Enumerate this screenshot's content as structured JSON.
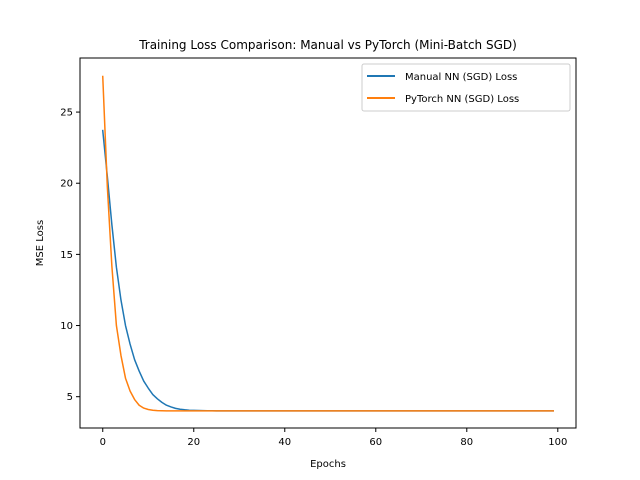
{
  "chart_data": {
    "type": "line",
    "title": "Training Loss Comparison: Manual vs PyTorch (Mini-Batch SGD)",
    "xlabel": "Epochs",
    "ylabel": "MSE Loss",
    "xlim": [
      -5,
      104
    ],
    "ylim": [
      2.8,
      28.8
    ],
    "xticks": [
      0,
      20,
      40,
      60,
      80,
      100
    ],
    "yticks": [
      5,
      10,
      15,
      20,
      25
    ],
    "grid": false,
    "legend_position": "top-right",
    "series": [
      {
        "name": "Manual NN (SGD) Loss",
        "color": "#1f77b4",
        "x": [
          0,
          1,
          2,
          3,
          4,
          5,
          6,
          7,
          8,
          9,
          10,
          11,
          12,
          13,
          14,
          15,
          16,
          17,
          18,
          19,
          20,
          21,
          22,
          23,
          24,
          25,
          26,
          27,
          28,
          29,
          30,
          35,
          40,
          45,
          50,
          55,
          60,
          65,
          70,
          75,
          80,
          85,
          90,
          95,
          99
        ],
        "y": [
          23.7,
          20.5,
          17.1,
          14.1,
          11.8,
          10.0,
          8.7,
          7.6,
          6.8,
          6.1,
          5.6,
          5.15,
          4.85,
          4.6,
          4.4,
          4.28,
          4.18,
          4.12,
          4.08,
          4.05,
          4.04,
          4.03,
          4.02,
          4.01,
          4.01,
          4.0,
          4.0,
          4.0,
          4.0,
          4.0,
          4.0,
          4.0,
          4.0,
          4.0,
          4.0,
          4.0,
          4.0,
          4.0,
          4.0,
          4.0,
          4.0,
          4.0,
          4.0,
          4.0,
          4.0
        ]
      },
      {
        "name": "PyTorch NN (SGD) Loss",
        "color": "#ff7f0e",
        "x": [
          0,
          1,
          2,
          3,
          4,
          5,
          6,
          7,
          8,
          9,
          10,
          11,
          12,
          13,
          14,
          15,
          16,
          17,
          18,
          19,
          20,
          25,
          30,
          35,
          40,
          45,
          50,
          55,
          60,
          65,
          70,
          75,
          80,
          85,
          90,
          95,
          99
        ],
        "y": [
          27.5,
          19.8,
          14.2,
          10.0,
          7.9,
          6.3,
          5.4,
          4.8,
          4.4,
          4.2,
          4.1,
          4.05,
          4.02,
          4.01,
          4.0,
          4.0,
          4.0,
          4.0,
          4.0,
          4.0,
          4.0,
          4.0,
          4.0,
          4.0,
          4.0,
          4.0,
          4.0,
          4.0,
          4.0,
          4.0,
          4.0,
          4.0,
          4.0,
          4.0,
          4.0,
          4.0,
          4.0
        ]
      }
    ]
  }
}
